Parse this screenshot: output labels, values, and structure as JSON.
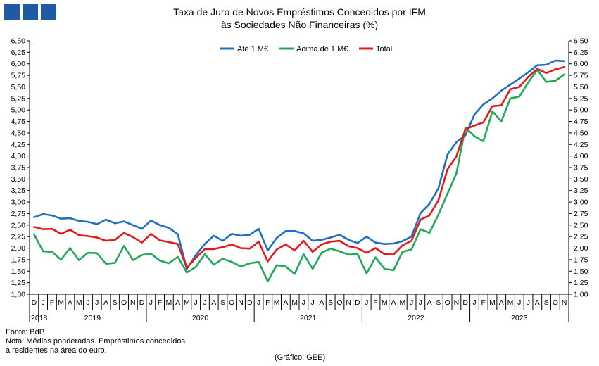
{
  "logo": {
    "color": "#1f5aa6"
  },
  "header": {
    "title_line1": "Taxa de Juro de Novos Empréstimos  Concedidos por IFM",
    "title_line2": "às Sociedades Não Financeiras (%)"
  },
  "footer": {
    "source": "Fonte: BdP",
    "note_line1": "Nota: Médias ponderadas. Empréstimos concedidos",
    "note_line2": "a residentes na área do euro.",
    "credit": "(Gráfico: GEE)"
  },
  "chart_data": {
    "type": "line",
    "ylim": [
      1.0,
      6.5
    ],
    "ytick_step": 0.25,
    "yticks": [
      "1,00",
      "1,25",
      "1,50",
      "1,75",
      "2,00",
      "2,25",
      "2,50",
      "2,75",
      "3,00",
      "3,25",
      "3,50",
      "3,75",
      "4,00",
      "4,25",
      "4,50",
      "4,75",
      "5,00",
      "5,25",
      "5,50",
      "5,75",
      "6,00",
      "6,25",
      "6,50"
    ],
    "month_labels": [
      "D",
      "J",
      "F",
      "M",
      "A",
      "M",
      "J",
      "J",
      "A",
      "S",
      "O",
      "N",
      "D",
      "J",
      "F",
      "M",
      "A",
      "M",
      "J",
      "J",
      "A",
      "S",
      "O",
      "N",
      "D",
      "J",
      "F",
      "M",
      "A",
      "M",
      "J",
      "J",
      "A",
      "S",
      "O",
      "N",
      "D",
      "J",
      "F",
      "M",
      "A",
      "M",
      "J",
      "J",
      "A",
      "S",
      "O",
      "N",
      "D",
      "J",
      "F",
      "M",
      "A",
      "M",
      "J",
      "J",
      "A",
      "S",
      "O",
      "N"
    ],
    "year_labels": [
      {
        "label": "2018",
        "start": 0,
        "end": 0
      },
      {
        "label": "2019",
        "start": 1,
        "end": 12
      },
      {
        "label": "2020",
        "start": 13,
        "end": 24
      },
      {
        "label": "2021",
        "start": 25,
        "end": 36
      },
      {
        "label": "2022",
        "start": 37,
        "end": 48
      },
      {
        "label": "2023",
        "start": 49,
        "end": 59
      }
    ],
    "legend_position": "top-center",
    "grid": false,
    "series": [
      {
        "name": "Até 1 M€",
        "color": "#1f6fc0",
        "values": [
          2.67,
          2.74,
          2.71,
          2.64,
          2.65,
          2.59,
          2.57,
          2.52,
          2.62,
          2.54,
          2.58,
          2.5,
          2.42,
          2.6,
          2.5,
          2.44,
          2.3,
          1.55,
          1.85,
          2.09,
          2.27,
          2.16,
          2.31,
          2.27,
          2.29,
          2.42,
          1.95,
          2.22,
          2.37,
          2.37,
          2.32,
          2.16,
          2.18,
          2.23,
          2.29,
          2.18,
          2.11,
          2.25,
          2.12,
          2.09,
          2.1,
          2.15,
          2.25,
          2.76,
          2.96,
          3.3,
          4.03,
          4.3,
          4.45,
          4.9,
          5.12,
          5.25,
          5.42,
          5.55,
          5.68,
          5.82,
          5.97,
          5.98,
          6.07,
          6.06
        ]
      },
      {
        "name": "Acima de 1 M€",
        "color": "#22a85a",
        "values": [
          2.3,
          1.93,
          1.92,
          1.75,
          2.0,
          1.74,
          1.9,
          1.89,
          1.66,
          1.68,
          2.05,
          1.74,
          1.85,
          1.88,
          1.73,
          1.67,
          1.81,
          1.47,
          1.59,
          1.87,
          1.64,
          1.77,
          1.7,
          1.6,
          1.67,
          1.7,
          1.28,
          1.63,
          1.6,
          1.44,
          1.87,
          1.55,
          1.9,
          1.99,
          1.93,
          1.86,
          1.87,
          1.45,
          1.8,
          1.55,
          1.52,
          1.92,
          1.97,
          2.41,
          2.33,
          2.73,
          3.18,
          3.62,
          4.62,
          4.43,
          4.32,
          4.97,
          4.75,
          5.25,
          5.29,
          5.6,
          5.87,
          5.61,
          5.63,
          5.77
        ]
      },
      {
        "name": "Total",
        "color": "#e01b1b",
        "values": [
          2.46,
          2.41,
          2.42,
          2.31,
          2.4,
          2.28,
          2.26,
          2.23,
          2.16,
          2.18,
          2.33,
          2.24,
          2.12,
          2.31,
          2.17,
          2.13,
          2.09,
          1.57,
          1.79,
          1.98,
          1.98,
          2.02,
          2.08,
          2.0,
          1.99,
          2.14,
          1.71,
          1.97,
          2.08,
          1.95,
          2.16,
          1.92,
          2.08,
          2.14,
          2.16,
          2.04,
          2.0,
          1.9,
          2.0,
          1.87,
          1.86,
          2.06,
          2.16,
          2.62,
          2.71,
          3.04,
          3.71,
          3.99,
          4.58,
          4.66,
          4.73,
          5.08,
          5.1,
          5.45,
          5.5,
          5.72,
          5.89,
          5.8,
          5.88,
          5.93
        ]
      }
    ]
  }
}
